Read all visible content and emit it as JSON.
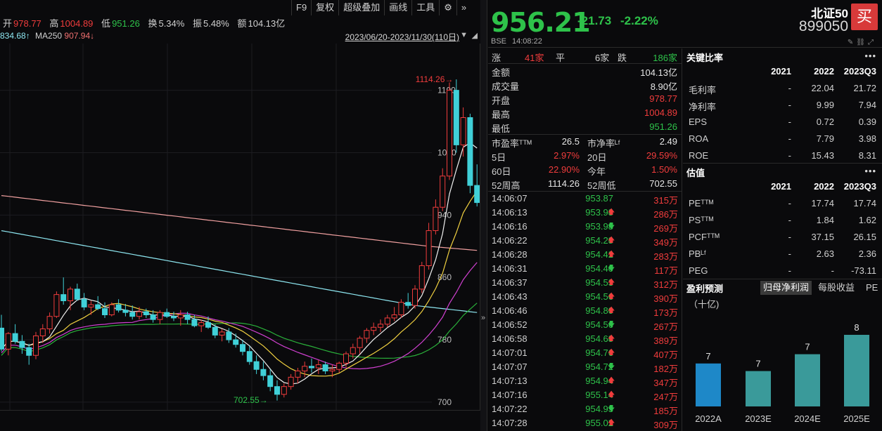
{
  "toolbar": {
    "f9": "F9",
    "adjust": "复权",
    "overlay": "超级叠加",
    "draw": "画线",
    "tools": "工具",
    "gear_icon": "gear-icon",
    "more": "»"
  },
  "ohlc": {
    "open_label": "开",
    "open": "978.77",
    "high_label": "高",
    "high": "1004.89",
    "low_label": "低",
    "low": "951.26",
    "turnover_label": "换",
    "turnover": "5.34%",
    "amplitude_label": "振",
    "amplitude": "5.48%",
    "amount_label": "额",
    "amount": "104.13亿"
  },
  "ma_line": {
    "first": "834.68↑",
    "ma250_label": "MA250",
    "ma250": "907.94↓"
  },
  "date_range": "2023/06/20-2023/11/30(110日)",
  "chart_data": {
    "type": "candlestick",
    "title": "",
    "ylim": [
      690,
      1160
    ],
    "yticks": [
      "1100",
      "1020",
      "940",
      "860",
      "780",
      "700"
    ],
    "annotations": {
      "high_label": "1114.26",
      "low_label": "702.55"
    },
    "candles": [
      [
        795,
        812,
        765,
        768
      ],
      [
        768,
        790,
        760,
        788
      ],
      [
        788,
        800,
        775,
        778
      ],
      [
        778,
        786,
        762,
        770
      ],
      [
        770,
        775,
        748,
        760
      ],
      [
        760,
        790,
        755,
        785
      ],
      [
        785,
        800,
        776,
        794
      ],
      [
        794,
        815,
        788,
        810
      ],
      [
        810,
        842,
        808,
        838
      ],
      [
        838,
        860,
        825,
        830
      ],
      [
        830,
        848,
        818,
        845
      ],
      [
        845,
        852,
        830,
        832
      ],
      [
        832,
        840,
        818,
        822
      ],
      [
        822,
        830,
        812,
        825
      ],
      [
        825,
        836,
        818,
        820
      ],
      [
        820,
        828,
        808,
        812
      ],
      [
        812,
        828,
        810,
        825
      ],
      [
        825,
        832,
        815,
        818
      ],
      [
        818,
        826,
        810,
        815
      ],
      [
        815,
        824,
        806,
        810
      ],
      [
        810,
        822,
        806,
        816
      ],
      [
        816,
        820,
        808,
        812
      ],
      [
        812,
        818,
        802,
        806
      ],
      [
        806,
        818,
        800,
        815
      ],
      [
        815,
        820,
        808,
        810
      ],
      [
        810,
        816,
        804,
        808
      ],
      [
        808,
        818,
        798,
        812
      ],
      [
        812,
        816,
        800,
        806
      ],
      [
        806,
        812,
        796,
        798
      ],
      [
        798,
        806,
        790,
        802
      ],
      [
        802,
        810,
        794,
        796
      ],
      [
        796,
        800,
        782,
        786
      ],
      [
        786,
        794,
        778,
        790
      ],
      [
        790,
        795,
        776,
        780
      ],
      [
        780,
        788,
        770,
        774
      ],
      [
        774,
        780,
        760,
        765
      ],
      [
        765,
        772,
        748,
        752
      ],
      [
        752,
        760,
        736,
        742
      ],
      [
        742,
        752,
        728,
        734
      ],
      [
        734,
        742,
        714,
        720
      ],
      [
        720,
        728,
        702,
        710
      ],
      [
        710,
        724,
        706,
        720
      ],
      [
        720,
        736,
        716,
        732
      ],
      [
        732,
        744,
        724,
        740
      ],
      [
        740,
        752,
        732,
        746
      ],
      [
        746,
        756,
        738,
        744
      ],
      [
        744,
        754,
        736,
        748
      ],
      [
        748,
        752,
        736,
        740
      ],
      [
        740,
        748,
        732,
        742
      ],
      [
        742,
        752,
        738,
        750
      ],
      [
        750,
        765,
        745,
        762
      ],
      [
        762,
        775,
        756,
        770
      ],
      [
        770,
        785,
        762,
        782
      ],
      [
        782,
        795,
        776,
        792
      ],
      [
        792,
        802,
        786,
        796
      ],
      [
        796,
        806,
        790,
        800
      ],
      [
        800,
        812,
        796,
        808
      ],
      [
        808,
        822,
        804,
        812
      ],
      [
        812,
        832,
        808,
        828
      ],
      [
        828,
        840,
        820,
        824
      ],
      [
        824,
        850,
        820,
        845
      ],
      [
        845,
        880,
        840,
        875
      ],
      [
        875,
        930,
        870,
        920
      ],
      [
        920,
        960,
        915,
        950
      ],
      [
        950,
        1000,
        945,
        990
      ],
      [
        990,
        1110,
        985,
        1100
      ],
      [
        1100,
        1114,
        1020,
        1030
      ],
      [
        1030,
        1078,
        1015,
        1065
      ],
      [
        1065,
        1070,
        968,
        978
      ],
      [
        978,
        1005,
        951,
        956
      ]
    ]
  },
  "quote": {
    "price": "956.21",
    "change": "-21.73",
    "change_pct": "-2.22%",
    "exchange": "BSE",
    "time": "14:08:22",
    "name": "北证50",
    "code": "899050",
    "buy": "买"
  },
  "breadth": {
    "up_label": "涨",
    "up": "41家",
    "flat_label": "平",
    "flat": "6家",
    "down_label": "跌",
    "down": "186家"
  },
  "stats": [
    {
      "label": "金额",
      "value": "104.13亿",
      "color": "#e6e6e6"
    },
    {
      "label": "成交量",
      "value": "8.90亿",
      "color": "#e6e6e6"
    },
    {
      "label": "开盘",
      "value": "978.77",
      "color": "#f03c3c"
    },
    {
      "label": "最高",
      "value": "1004.89",
      "color": "#f03c3c"
    },
    {
      "label": "最低",
      "value": "951.26",
      "color": "#2ec24a"
    }
  ],
  "ratios": [
    {
      "l1": "市盈率ᵀᵀᴹ",
      "v1": "26.5",
      "c1": "#e6e6e6",
      "l2": "市净率ᴸᶠ",
      "v2": "2.49",
      "c2": "#e6e6e6"
    },
    {
      "l1": "5日",
      "v1": "2.97%",
      "c1": "#f03c3c",
      "l2": "20日",
      "v2": "29.59%",
      "c2": "#f03c3c"
    },
    {
      "l1": "60日",
      "v1": "22.90%",
      "c1": "#f03c3c",
      "l2": "今年",
      "v2": "1.50%",
      "c2": "#f03c3c"
    },
    {
      "l1": "52周高",
      "v1": "1114.26",
      "c1": "#e6e6e6",
      "l2": "52周低",
      "v2": "702.55",
      "c2": "#e6e6e6"
    }
  ],
  "ticks": [
    {
      "time": "14:06:07",
      "price": "953.87",
      "arrow": "",
      "vol": "315万"
    },
    {
      "time": "14:06:13",
      "price": "953.98",
      "arrow": "up",
      "vol": "286万"
    },
    {
      "time": "14:06:16",
      "price": "953.98",
      "arrow": "down",
      "vol": "269万"
    },
    {
      "time": "14:06:22",
      "price": "954.28",
      "arrow": "up",
      "vol": "349万"
    },
    {
      "time": "14:06:28",
      "price": "954.42",
      "arrow": "up",
      "vol": "283万"
    },
    {
      "time": "14:06:31",
      "price": "954.40",
      "arrow": "down",
      "vol": "117万"
    },
    {
      "time": "14:06:37",
      "price": "954.53",
      "arrow": "up",
      "vol": "312万"
    },
    {
      "time": "14:06:43",
      "price": "954.56",
      "arrow": "up",
      "vol": "390万"
    },
    {
      "time": "14:06:46",
      "price": "954.80",
      "arrow": "up",
      "vol": "173万"
    },
    {
      "time": "14:06:52",
      "price": "954.56",
      "arrow": "down",
      "vol": "267万"
    },
    {
      "time": "14:06:58",
      "price": "954.68",
      "arrow": "up",
      "vol": "389万"
    },
    {
      "time": "14:07:01",
      "price": "954.76",
      "arrow": "up",
      "vol": "407万"
    },
    {
      "time": "14:07:07",
      "price": "954.72",
      "arrow": "down",
      "vol": "182万"
    },
    {
      "time": "14:07:13",
      "price": "954.94",
      "arrow": "up",
      "vol": "347万"
    },
    {
      "time": "14:07:16",
      "price": "955.14",
      "arrow": "up",
      "vol": "247万"
    },
    {
      "time": "14:07:22",
      "price": "954.93",
      "arrow": "down",
      "vol": "185万"
    },
    {
      "time": "14:07:28",
      "price": "955.02",
      "arrow": "up",
      "vol": "309万"
    }
  ],
  "key_ratios": {
    "title": "关键比率",
    "more": "•••",
    "headers": [
      "2021",
      "2022",
      "2023Q3"
    ],
    "rows": [
      {
        "label": "毛利率",
        "v": [
          "-",
          "22.04",
          "21.72"
        ]
      },
      {
        "label": "净利率",
        "v": [
          "-",
          "9.99",
          "7.94"
        ]
      },
      {
        "label": "EPS",
        "v": [
          "-",
          "0.72",
          "0.39"
        ]
      },
      {
        "label": "ROA",
        "v": [
          "-",
          "7.79",
          "3.98"
        ]
      },
      {
        "label": "ROE",
        "v": [
          "-",
          "15.43",
          "8.31"
        ]
      }
    ]
  },
  "valuation": {
    "title": "估值",
    "more": "•••",
    "headers": [
      "2021",
      "2022",
      "2023Q3"
    ],
    "rows": [
      {
        "label": "PEᵀᵀᴹ",
        "v": [
          "-",
          "17.74",
          "17.74"
        ]
      },
      {
        "label": "PSᵀᵀᴹ",
        "v": [
          "-",
          "1.84",
          "1.62"
        ]
      },
      {
        "label": "PCFᵀᵀᴹ",
        "v": [
          "-",
          "37.15",
          "26.15"
        ]
      },
      {
        "label": "PBᴸᶠ",
        "v": [
          "-",
          "2.63",
          "2.36"
        ]
      },
      {
        "label": "PEG",
        "v": [
          "-",
          "-",
          "-73.11"
        ]
      }
    ]
  },
  "forecast": {
    "title": "盈利预测",
    "tabs": [
      "归母净利润",
      "每股收益",
      "PE"
    ],
    "unit": "（十亿)",
    "chart_data": {
      "type": "bar",
      "categories": [
        "2022A",
        "2023E",
        "2024E",
        "2025E"
      ],
      "values": [
        7,
        7,
        7,
        8
      ],
      "bar_heights": [
        0.51,
        0.42,
        0.62,
        0.85
      ],
      "colors": [
        "#1e88c8",
        "#3a9a9a",
        "#3a9a9a",
        "#3a9a9a"
      ]
    }
  }
}
